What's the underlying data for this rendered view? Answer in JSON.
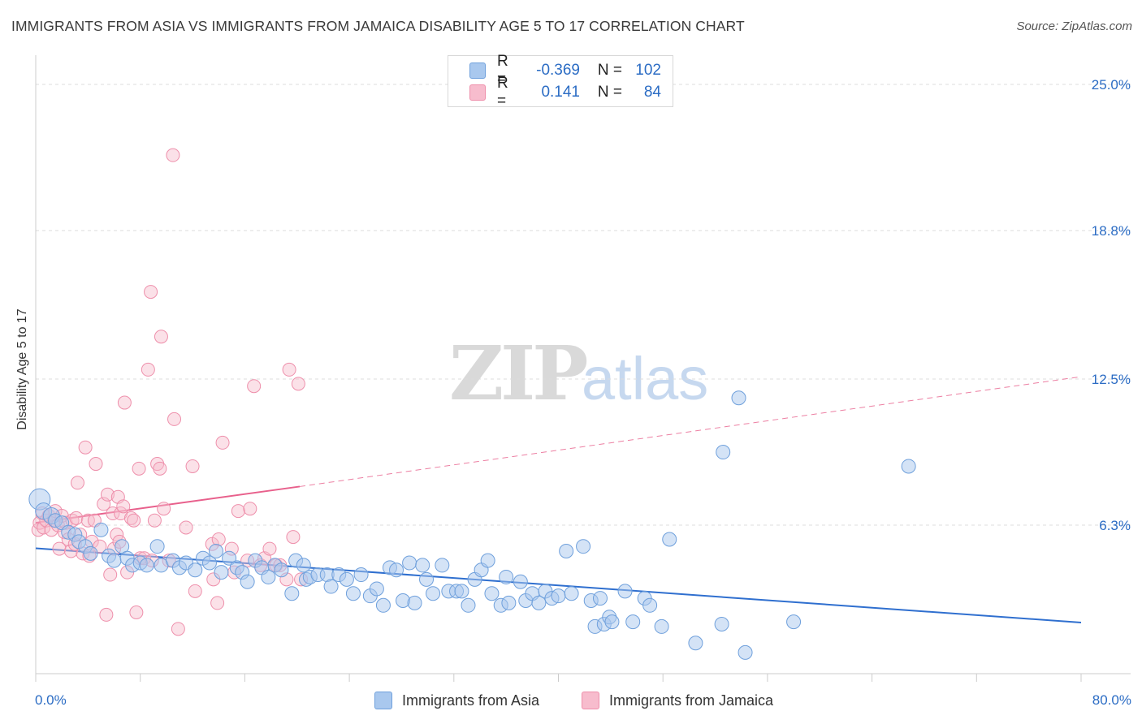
{
  "header": {
    "title": "IMMIGRANTS FROM ASIA VS IMMIGRANTS FROM JAMAICA DISABILITY AGE 5 TO 17 CORRELATION CHART",
    "source": "Source: ZipAtlas.com"
  },
  "legend": {
    "asia": {
      "r_label": "R =",
      "r_value": "-0.369",
      "n_label": "N =",
      "n_value": "102"
    },
    "jamaica": {
      "r_label": "R =",
      "r_value": "0.141",
      "n_label": "N =",
      "n_value": "84"
    }
  },
  "watermark": {
    "zip": "ZIP",
    "atlas": "atlas"
  },
  "colors": {
    "asia_fill": "#a9c8ee",
    "asia_stroke": "#6fa0dc",
    "asia_line": "#2f6fcf",
    "jamaica_fill": "#f7bccd",
    "jamaica_stroke": "#ee8fab",
    "jamaica_line": "#e8608c",
    "tick_label": "#2b6cc4",
    "grid": "#dcdcdc"
  },
  "chart_data": {
    "type": "scatter",
    "title": "IMMIGRANTS FROM ASIA VS IMMIGRANTS FROM JAMAICA DISABILITY AGE 5 TO 17 CORRELATION CHART",
    "xlabel": "",
    "ylabel": "Disability Age 5 to 17",
    "xlim": [
      0,
      80
    ],
    "ylim": [
      0,
      26
    ],
    "x_tick_labels": [
      "0.0%",
      "80.0%"
    ],
    "y_ticks": [
      6.3,
      12.5,
      18.8,
      25.0
    ],
    "y_tick_labels": [
      "6.3%",
      "12.5%",
      "18.8%",
      "25.0%"
    ],
    "grid": true,
    "legend_position": "top-center",
    "series": [
      {
        "name": "Immigrants from Asia",
        "trend": {
          "x": [
            0,
            80
          ],
          "y": [
            5.32,
            2.17
          ],
          "style": "solid"
        },
        "points": [
          [
            0.3,
            7.4
          ],
          [
            0.6,
            6.9
          ],
          [
            1.2,
            6.7
          ],
          [
            1.5,
            6.5
          ],
          [
            2.0,
            6.4
          ],
          [
            2.5,
            6.0
          ],
          [
            3.0,
            5.9
          ],
          [
            3.3,
            5.6
          ],
          [
            3.8,
            5.4
          ],
          [
            4.2,
            5.1
          ],
          [
            5.0,
            6.1
          ],
          [
            5.6,
            5.0
          ],
          [
            6.0,
            4.8
          ],
          [
            6.6,
            5.4
          ],
          [
            7.0,
            4.9
          ],
          [
            7.4,
            4.6
          ],
          [
            8.0,
            4.7
          ],
          [
            8.5,
            4.6
          ],
          [
            9.3,
            5.4
          ],
          [
            9.6,
            4.6
          ],
          [
            10.5,
            4.8
          ],
          [
            11.0,
            4.5
          ],
          [
            11.5,
            4.7
          ],
          [
            12.2,
            4.4
          ],
          [
            12.8,
            4.9
          ],
          [
            13.3,
            4.7
          ],
          [
            13.8,
            5.2
          ],
          [
            14.2,
            4.3
          ],
          [
            14.8,
            4.9
          ],
          [
            15.4,
            4.5
          ],
          [
            15.8,
            4.3
          ],
          [
            16.2,
            3.9
          ],
          [
            16.8,
            4.8
          ],
          [
            17.3,
            4.5
          ],
          [
            17.8,
            4.1
          ],
          [
            18.3,
            4.6
          ],
          [
            18.8,
            4.4
          ],
          [
            19.6,
            3.4
          ],
          [
            19.9,
            4.8
          ],
          [
            20.5,
            4.6
          ],
          [
            20.7,
            4.0
          ],
          [
            21.0,
            4.1
          ],
          [
            21.6,
            4.2
          ],
          [
            22.3,
            4.2
          ],
          [
            22.6,
            3.7
          ],
          [
            23.2,
            4.2
          ],
          [
            23.8,
            4.0
          ],
          [
            24.3,
            3.4
          ],
          [
            24.9,
            4.2
          ],
          [
            25.6,
            3.3
          ],
          [
            26.1,
            3.6
          ],
          [
            26.6,
            2.9
          ],
          [
            27.1,
            4.5
          ],
          [
            27.6,
            4.4
          ],
          [
            28.1,
            3.1
          ],
          [
            28.6,
            4.7
          ],
          [
            29.0,
            3.0
          ],
          [
            29.6,
            4.6
          ],
          [
            29.9,
            4.0
          ],
          [
            30.4,
            3.4
          ],
          [
            31.1,
            4.6
          ],
          [
            31.6,
            3.5
          ],
          [
            32.2,
            3.5
          ],
          [
            32.6,
            3.5
          ],
          [
            33.1,
            2.9
          ],
          [
            33.6,
            4.0
          ],
          [
            34.1,
            4.4
          ],
          [
            34.6,
            4.8
          ],
          [
            34.9,
            3.4
          ],
          [
            35.6,
            2.9
          ],
          [
            36.0,
            4.1
          ],
          [
            36.2,
            3.0
          ],
          [
            37.1,
            3.9
          ],
          [
            37.5,
            3.1
          ],
          [
            38.0,
            3.4
          ],
          [
            38.5,
            3.0
          ],
          [
            39.0,
            3.5
          ],
          [
            39.5,
            3.2
          ],
          [
            40.0,
            3.3
          ],
          [
            40.6,
            5.2
          ],
          [
            41.0,
            3.4
          ],
          [
            41.9,
            5.4
          ],
          [
            42.5,
            3.1
          ],
          [
            42.8,
            2.0
          ],
          [
            43.2,
            3.2
          ],
          [
            43.5,
            2.1
          ],
          [
            43.9,
            2.4
          ],
          [
            44.1,
            2.2
          ],
          [
            45.1,
            3.5
          ],
          [
            45.7,
            2.2
          ],
          [
            46.6,
            3.2
          ],
          [
            47.0,
            2.9
          ],
          [
            47.9,
            2.0
          ],
          [
            48.5,
            5.7
          ],
          [
            50.5,
            1.3
          ],
          [
            52.5,
            2.1
          ],
          [
            52.6,
            9.4
          ],
          [
            53.8,
            11.7
          ],
          [
            54.3,
            0.9
          ],
          [
            58.0,
            2.2
          ],
          [
            66.8,
            8.8
          ]
        ]
      },
      {
        "name": "Immigrants from Jamaica",
        "trend_solid": {
          "x": [
            0,
            20.2
          ],
          "y": [
            6.4,
            7.94
          ],
          "style": "solid"
        },
        "trend_dashed": {
          "x": [
            20.2,
            80
          ],
          "y": [
            7.94,
            12.6
          ],
          "style": "dashed"
        },
        "points": [
          [
            0.2,
            6.1
          ],
          [
            0.3,
            6.4
          ],
          [
            0.5,
            6.8
          ],
          [
            0.6,
            6.2
          ],
          [
            0.8,
            6.5
          ],
          [
            1.0,
            6.7
          ],
          [
            1.2,
            6.1
          ],
          [
            1.4,
            6.5
          ],
          [
            1.5,
            6.9
          ],
          [
            1.7,
            6.3
          ],
          [
            1.8,
            5.3
          ],
          [
            2.0,
            6.7
          ],
          [
            2.2,
            6.0
          ],
          [
            2.3,
            6.4
          ],
          [
            2.5,
            5.7
          ],
          [
            2.7,
            5.2
          ],
          [
            2.8,
            6.5
          ],
          [
            3.0,
            5.5
          ],
          [
            3.1,
            6.6
          ],
          [
            3.2,
            8.1
          ],
          [
            3.4,
            5.9
          ],
          [
            3.6,
            5.1
          ],
          [
            3.8,
            9.6
          ],
          [
            4.0,
            6.5
          ],
          [
            4.1,
            5.0
          ],
          [
            4.3,
            5.6
          ],
          [
            4.5,
            6.5
          ],
          [
            4.6,
            8.9
          ],
          [
            4.9,
            5.4
          ],
          [
            5.2,
            7.2
          ],
          [
            5.4,
            2.5
          ],
          [
            5.5,
            7.6
          ],
          [
            5.7,
            4.2
          ],
          [
            5.9,
            6.8
          ],
          [
            6.0,
            5.3
          ],
          [
            6.2,
            5.9
          ],
          [
            6.3,
            7.5
          ],
          [
            6.4,
            5.6
          ],
          [
            6.5,
            6.8
          ],
          [
            6.7,
            7.1
          ],
          [
            6.8,
            11.5
          ],
          [
            7.0,
            4.3
          ],
          [
            7.3,
            6.6
          ],
          [
            7.5,
            6.5
          ],
          [
            7.7,
            2.6
          ],
          [
            7.9,
            8.7
          ],
          [
            8.0,
            4.9
          ],
          [
            8.3,
            4.9
          ],
          [
            8.6,
            12.9
          ],
          [
            8.8,
            16.2
          ],
          [
            8.9,
            4.8
          ],
          [
            9.1,
            6.5
          ],
          [
            9.3,
            8.9
          ],
          [
            9.5,
            8.7
          ],
          [
            9.6,
            14.3
          ],
          [
            9.8,
            7.0
          ],
          [
            10.2,
            4.8
          ],
          [
            10.5,
            22.0
          ],
          [
            10.6,
            10.8
          ],
          [
            10.9,
            1.9
          ],
          [
            11.5,
            6.2
          ],
          [
            12.0,
            8.8
          ],
          [
            12.2,
            3.5
          ],
          [
            13.5,
            5.5
          ],
          [
            13.6,
            4.0
          ],
          [
            13.9,
            3.0
          ],
          [
            14.0,
            5.7
          ],
          [
            14.3,
            9.8
          ],
          [
            15.0,
            5.3
          ],
          [
            15.2,
            4.3
          ],
          [
            15.5,
            6.9
          ],
          [
            16.2,
            4.8
          ],
          [
            16.4,
            7.0
          ],
          [
            16.7,
            12.2
          ],
          [
            17.2,
            4.6
          ],
          [
            17.5,
            4.9
          ],
          [
            17.9,
            5.3
          ],
          [
            18.4,
            4.6
          ],
          [
            18.7,
            4.6
          ],
          [
            19.2,
            4.0
          ],
          [
            19.4,
            12.9
          ],
          [
            19.7,
            5.8
          ],
          [
            20.1,
            12.3
          ],
          [
            20.3,
            4.0
          ]
        ]
      }
    ]
  }
}
